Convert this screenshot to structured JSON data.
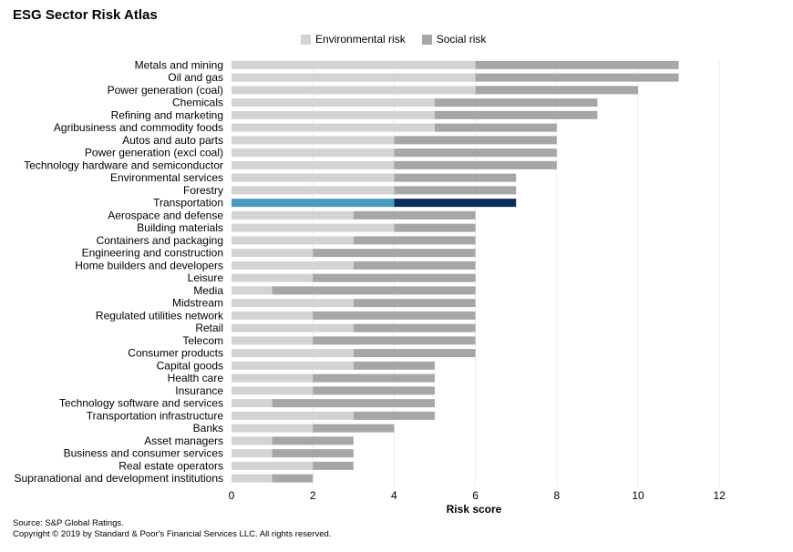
{
  "title": "ESG Sector Risk Atlas",
  "legend": {
    "environmental": {
      "label": "Environmental risk",
      "color": "#d3d3d3"
    },
    "social": {
      "label": "Social risk",
      "color": "#a6a6a6"
    }
  },
  "highlight_colors": {
    "environmental": "#4a9bbd",
    "social": "#0b2d5a"
  },
  "footer": {
    "source": "Source: S&P Global Ratings.",
    "copyright": "Copyright © 2019 by Standard & Poor's Financial Services LLC. All rights reserved."
  },
  "chart_data": {
    "type": "bar",
    "orientation": "horizontal",
    "stacked": true,
    "xlabel": "Risk score",
    "xlim": [
      0,
      12
    ],
    "xticks": [
      0,
      2,
      4,
      6,
      8,
      10,
      12
    ],
    "grid": true,
    "legend_position": "top",
    "highlight": "Transportation",
    "categories": [
      "Metals and mining",
      "Oil and gas",
      "Power generation (coal)",
      "Chemicals",
      "Refining and marketing",
      "Agribusiness and commodity foods",
      "Autos and auto parts",
      "Power generation (excl coal)",
      "Technology hardware and semiconductor",
      "Environmental services",
      "Forestry",
      "Transportation",
      "Aerospace and defense",
      "Building materials",
      "Containers and packaging",
      "Engineering and construction",
      "Home builders and developers",
      "Leisure",
      "Media",
      "Midstream",
      "Regulated utilities network",
      "Retail",
      "Telecom",
      "Consumer products",
      "Capital goods",
      "Health care",
      "Insurance",
      "Technology software and services",
      "Transportation infrastructure",
      "Banks",
      "Asset managers",
      "Business and consumer services",
      "Real estate operators",
      "Supranational and development institutions"
    ],
    "series": [
      {
        "name": "Environmental risk",
        "values": [
          6,
          6,
          6,
          5,
          5,
          5,
          4,
          4,
          4,
          4,
          4,
          4,
          3,
          4,
          3,
          2,
          3,
          2,
          1,
          3,
          2,
          3,
          2,
          3,
          3,
          2,
          2,
          1,
          3,
          2,
          1,
          1,
          2,
          1
        ]
      },
      {
        "name": "Social risk",
        "values": [
          5,
          5,
          4,
          4,
          4,
          3,
          4,
          4,
          4,
          3,
          3,
          3,
          3,
          2,
          3,
          4,
          3,
          4,
          5,
          3,
          4,
          3,
          4,
          3,
          2,
          3,
          3,
          4,
          2,
          2,
          2,
          2,
          1,
          1
        ]
      }
    ]
  }
}
